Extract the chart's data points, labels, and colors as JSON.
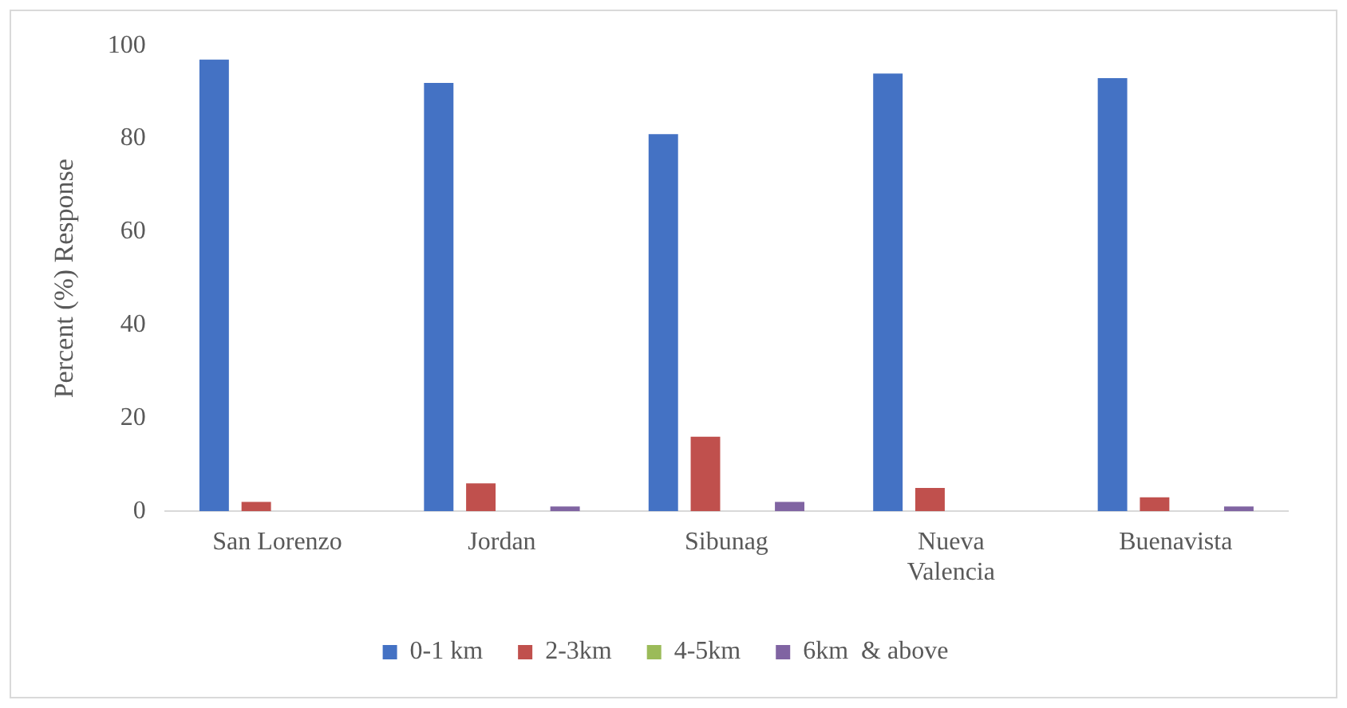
{
  "chart_data": {
    "type": "bar",
    "ylabel": "Percent (%) Response",
    "categories": [
      "San Lorenzo",
      "Jordan",
      "Sibunag",
      "Nueva Valencia",
      "Buenavista"
    ],
    "series": [
      {
        "name": "0-1 km",
        "color": "#4472c4",
        "values": [
          97,
          92,
          81,
          94,
          93
        ]
      },
      {
        "name": "2-3km",
        "color": "#c0504d",
        "values": [
          2,
          6,
          16,
          5,
          3
        ]
      },
      {
        "name": "4-5km",
        "color": "#9bbb59",
        "values": [
          0,
          0,
          0,
          0,
          0
        ]
      },
      {
        "name": "6km  & above",
        "color": "#8064a2",
        "values": [
          0,
          1,
          2,
          0,
          1
        ]
      }
    ],
    "ylim": [
      0,
      100
    ],
    "yticks": [
      0,
      20,
      40,
      60,
      80,
      100
    ],
    "grid": false,
    "legend": "bottom"
  }
}
